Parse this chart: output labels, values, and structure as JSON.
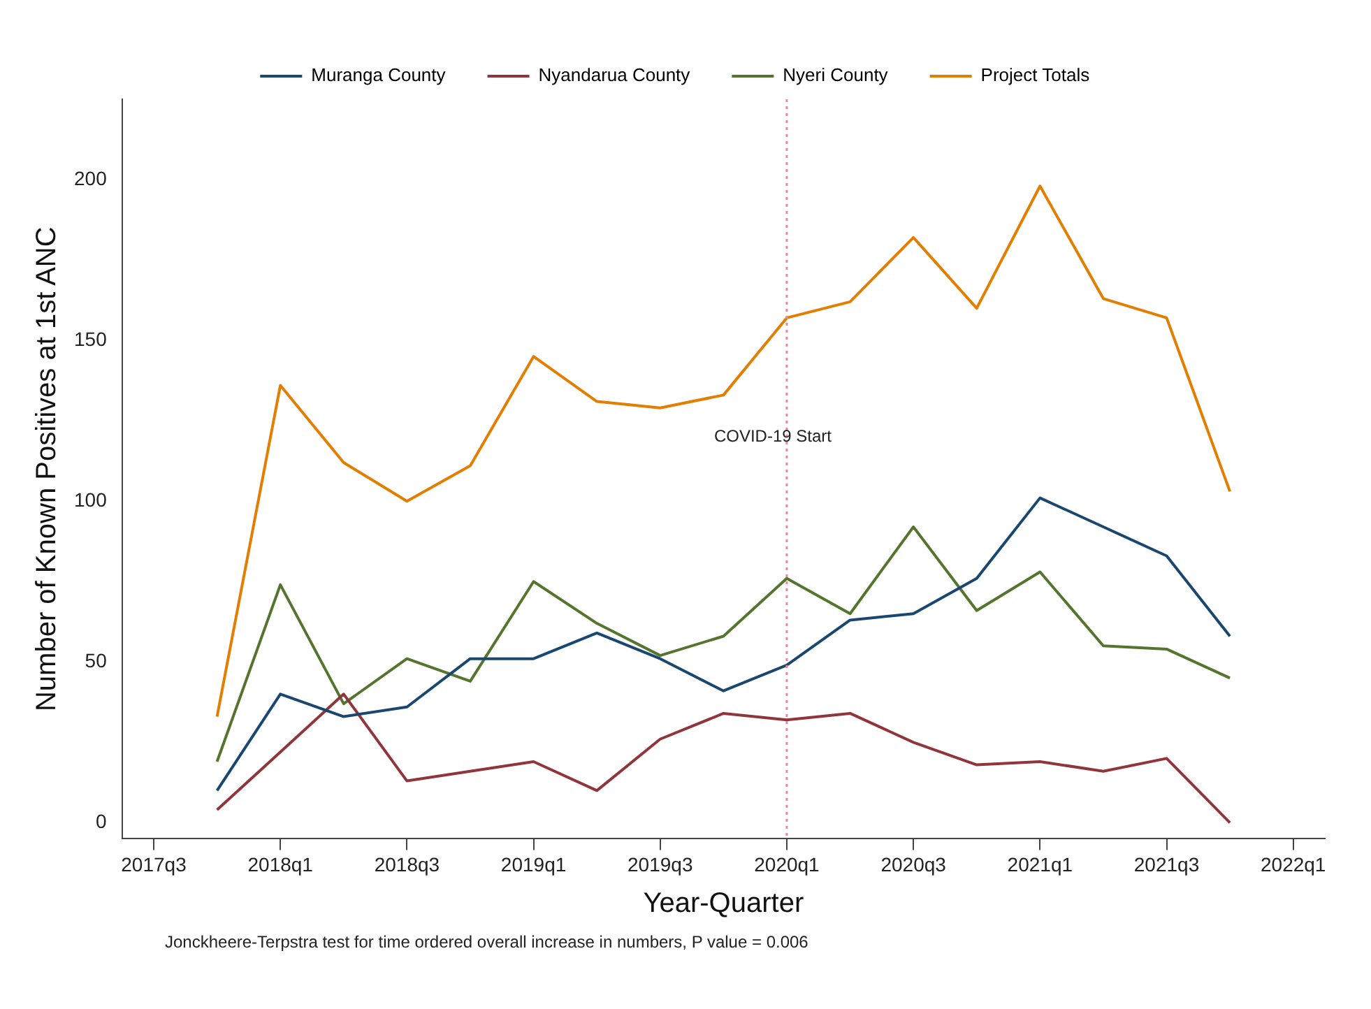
{
  "chart_data": {
    "type": "line",
    "xlabel": "Year-Quarter",
    "ylabel": "Number of Known Positives at 1st ANC",
    "categories": [
      "2017q3",
      null,
      "2018q1",
      null,
      "2018q3",
      null,
      "2019q1",
      null,
      "2019q3",
      null,
      "2020q1",
      null,
      "2020q3",
      null,
      "2021q1",
      null,
      "2021q3",
      null,
      "2022q1"
    ],
    "series": [
      {
        "name": "Muranga County",
        "color": "#1a476f",
        "values": [
          null,
          10,
          40,
          33,
          36,
          51,
          51,
          59,
          51,
          41,
          49,
          63,
          65,
          76,
          101,
          92,
          83,
          58,
          null
        ]
      },
      {
        "name": "Nyandarua County",
        "color": "#90353b",
        "values": [
          null,
          4,
          22,
          40,
          13,
          16,
          19,
          10,
          26,
          34,
          32,
          34,
          25,
          18,
          19,
          16,
          20,
          0,
          null
        ]
      },
      {
        "name": "Nyeri County",
        "color": "#55752f",
        "values": [
          null,
          19,
          74,
          37,
          51,
          44,
          75,
          62,
          52,
          58,
          76,
          65,
          92,
          66,
          78,
          55,
          54,
          45,
          null
        ]
      },
      {
        "name": "Project Totals",
        "color": "#e37e00",
        "values": [
          null,
          33,
          136,
          112,
          100,
          111,
          145,
          131,
          129,
          133,
          157,
          162,
          182,
          160,
          198,
          163,
          157,
          103,
          null
        ]
      }
    ],
    "ylim": [
      -5,
      225
    ],
    "yticks": [
      0,
      50,
      100,
      150,
      200
    ],
    "ref_lines": [
      {
        "axis": "x",
        "value": "2020q1",
        "label": "COVID-19 Start",
        "color": "#e8889a",
        "line_style": "dotted"
      }
    ],
    "annotations": [
      "Jonckheere-Terpstra test for time ordered overall increase in numbers, P value = 0.006"
    ],
    "legend": "top",
    "grid": false,
    "marker": "none",
    "line_style": "solid"
  }
}
